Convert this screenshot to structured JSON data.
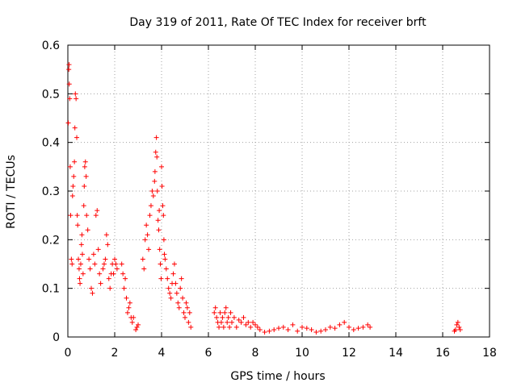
{
  "chart_data": {
    "type": "scatter",
    "title": "Day 319 of 2011, Rate Of TEC Index for receiver brft",
    "xlabel": "GPS time / hours",
    "ylabel": "ROTI / TECUs",
    "xlim": [
      0,
      18
    ],
    "ylim": [
      0,
      0.6
    ],
    "x_ticks": [
      0,
      2,
      4,
      6,
      8,
      10,
      12,
      14,
      16,
      18
    ],
    "x_tick_labels": [
      "0",
      "2",
      "4",
      "6",
      "8",
      "10",
      "12",
      "14",
      "16",
      "18"
    ],
    "y_ticks": [
      0,
      0.1,
      0.2,
      0.3,
      0.4,
      0.5,
      0.6
    ],
    "y_tick_labels": [
      "0",
      "0.1",
      "0.2",
      "0.3",
      "0.4",
      "0.5",
      "0.6"
    ],
    "grid": true,
    "marker": "plus",
    "series": [
      {
        "name": "brft",
        "color": "#ff0000",
        "x": [
          0.02,
          0.04,
          0.05,
          0.06,
          0.08,
          0.1,
          0.12,
          0.15,
          0.18,
          0.2,
          0.22,
          0.25,
          0.28,
          0.3,
          0.32,
          0.35,
          0.38,
          0.4,
          0.42,
          0.45,
          0.48,
          0.5,
          0.52,
          0.55,
          0.58,
          0.6,
          0.62,
          0.65,
          0.68,
          0.7,
          0.72,
          0.75,
          0.78,
          0.8,
          0.85,
          0.9,
          0.95,
          1.0,
          1.05,
          1.1,
          1.15,
          1.2,
          1.25,
          1.3,
          1.35,
          1.4,
          1.5,
          1.55,
          1.6,
          1.65,
          1.7,
          1.75,
          1.8,
          1.85,
          1.9,
          1.95,
          2.0,
          2.05,
          2.1,
          2.3,
          2.35,
          2.4,
          2.45,
          2.5,
          2.55,
          2.6,
          2.65,
          2.7,
          2.75,
          2.8,
          2.9,
          2.95,
          3.0,
          3.2,
          3.25,
          3.3,
          3.35,
          3.4,
          3.45,
          3.5,
          3.55,
          3.6,
          3.65,
          3.7,
          3.72,
          3.75,
          3.78,
          3.8,
          3.82,
          3.85,
          3.88,
          3.9,
          3.92,
          3.95,
          3.98,
          4.0,
          4.02,
          4.05,
          4.08,
          4.1,
          4.12,
          4.15,
          4.2,
          4.25,
          4.3,
          4.35,
          4.4,
          4.45,
          4.5,
          4.55,
          4.6,
          4.65,
          4.7,
          4.75,
          4.8,
          4.85,
          4.9,
          4.95,
          5.0,
          5.05,
          5.1,
          5.15,
          5.2,
          5.25,
          6.25,
          6.3,
          6.35,
          6.4,
          6.45,
          6.5,
          6.55,
          6.6,
          6.65,
          6.7,
          6.75,
          6.8,
          6.85,
          6.9,
          6.95,
          7.0,
          7.1,
          7.2,
          7.3,
          7.4,
          7.5,
          7.6,
          7.7,
          7.8,
          7.9,
          8.0,
          8.1,
          8.2,
          8.4,
          8.6,
          8.8,
          9.0,
          9.2,
          9.4,
          9.6,
          9.8,
          10.0,
          10.2,
          10.4,
          10.6,
          10.8,
          11.0,
          11.2,
          11.4,
          11.6,
          11.8,
          12.0,
          12.2,
          12.4,
          12.6,
          12.8,
          12.9,
          16.5,
          16.55,
          16.6,
          16.65,
          16.7,
          16.75
        ],
        "y": [
          0.44,
          0.55,
          0.56,
          0.52,
          0.49,
          0.35,
          0.25,
          0.16,
          0.15,
          0.29,
          0.31,
          0.33,
          0.36,
          0.43,
          0.5,
          0.49,
          0.41,
          0.25,
          0.23,
          0.16,
          0.14,
          0.12,
          0.11,
          0.15,
          0.19,
          0.21,
          0.17,
          0.13,
          0.27,
          0.31,
          0.35,
          0.36,
          0.33,
          0.25,
          0.22,
          0.16,
          0.14,
          0.1,
          0.09,
          0.17,
          0.15,
          0.25,
          0.26,
          0.18,
          0.13,
          0.11,
          0.14,
          0.15,
          0.16,
          0.21,
          0.19,
          0.12,
          0.1,
          0.13,
          0.15,
          0.13,
          0.16,
          0.15,
          0.14,
          0.15,
          0.13,
          0.1,
          0.12,
          0.08,
          0.05,
          0.06,
          0.07,
          0.04,
          0.03,
          0.04,
          0.015,
          0.02,
          0.025,
          0.16,
          0.14,
          0.2,
          0.23,
          0.21,
          0.18,
          0.25,
          0.27,
          0.3,
          0.29,
          0.32,
          0.34,
          0.38,
          0.41,
          0.37,
          0.3,
          0.24,
          0.22,
          0.26,
          0.18,
          0.15,
          0.12,
          0.35,
          0.31,
          0.27,
          0.25,
          0.2,
          0.17,
          0.16,
          0.14,
          0.12,
          0.1,
          0.09,
          0.08,
          0.11,
          0.13,
          0.15,
          0.11,
          0.09,
          0.07,
          0.06,
          0.1,
          0.12,
          0.08,
          0.05,
          0.04,
          0.07,
          0.06,
          0.03,
          0.05,
          0.02,
          0.05,
          0.06,
          0.04,
          0.03,
          0.02,
          0.05,
          0.03,
          0.04,
          0.02,
          0.05,
          0.06,
          0.03,
          0.04,
          0.02,
          0.05,
          0.03,
          0.04,
          0.02,
          0.035,
          0.03,
          0.04,
          0.025,
          0.03,
          0.02,
          0.03,
          0.025,
          0.02,
          0.015,
          0.01,
          0.012,
          0.015,
          0.018,
          0.02,
          0.015,
          0.025,
          0.012,
          0.02,
          0.018,
          0.015,
          0.01,
          0.012,
          0.015,
          0.02,
          0.018,
          0.025,
          0.03,
          0.02,
          0.015,
          0.018,
          0.02,
          0.025,
          0.02,
          0.012,
          0.015,
          0.025,
          0.03,
          0.02,
          0.015
        ]
      }
    ]
  }
}
